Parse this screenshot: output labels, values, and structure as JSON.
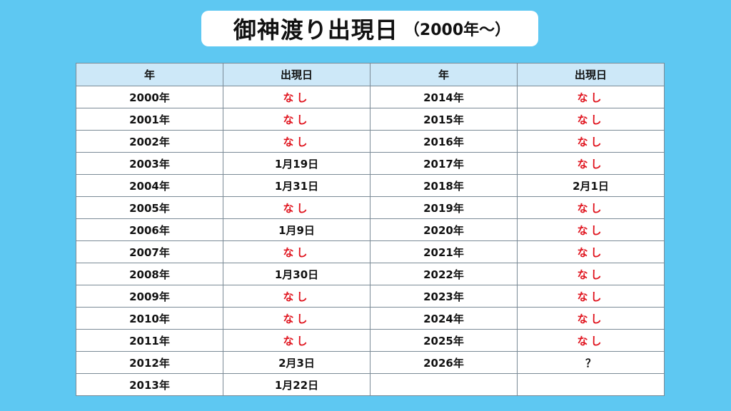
{
  "title": {
    "main": "御神渡り出現日",
    "sub": "（2000年〜）"
  },
  "table": {
    "headers": [
      "年",
      "出現日",
      "年",
      "出現日"
    ],
    "rows": [
      {
        "y1": "2000年",
        "d1": "なし",
        "y2": "2014年",
        "d2": "なし"
      },
      {
        "y1": "2001年",
        "d1": "なし",
        "y2": "2015年",
        "d2": "なし"
      },
      {
        "y1": "2002年",
        "d1": "なし",
        "y2": "2016年",
        "d2": "なし"
      },
      {
        "y1": "2003年",
        "d1": "1月19日",
        "y2": "2017年",
        "d2": "なし"
      },
      {
        "y1": "2004年",
        "d1": "1月31日",
        "y2": "2018年",
        "d2": "2月1日"
      },
      {
        "y1": "2005年",
        "d1": "なし",
        "y2": "2019年",
        "d2": "なし"
      },
      {
        "y1": "2006年",
        "d1": "1月9日",
        "y2": "2020年",
        "d2": "なし"
      },
      {
        "y1": "2007年",
        "d1": "なし",
        "y2": "2021年",
        "d2": "なし"
      },
      {
        "y1": "2008年",
        "d1": "1月30日",
        "y2": "2022年",
        "d2": "なし"
      },
      {
        "y1": "2009年",
        "d1": "なし",
        "y2": "2023年",
        "d2": "なし"
      },
      {
        "y1": "2010年",
        "d1": "なし",
        "y2": "2024年",
        "d2": "なし"
      },
      {
        "y1": "2011年",
        "d1": "なし",
        "y2": "2025年",
        "d2": "なし"
      },
      {
        "y1": "2012年",
        "d1": "2月3日",
        "y2": "2026年",
        "d2": "？"
      },
      {
        "y1": "2013年",
        "d1": "1月22日",
        "y2": "",
        "d2": ""
      }
    ]
  },
  "colors": {
    "background": "#5ec8f2",
    "header": "#cde8f8",
    "none_text": "#e0141e"
  }
}
